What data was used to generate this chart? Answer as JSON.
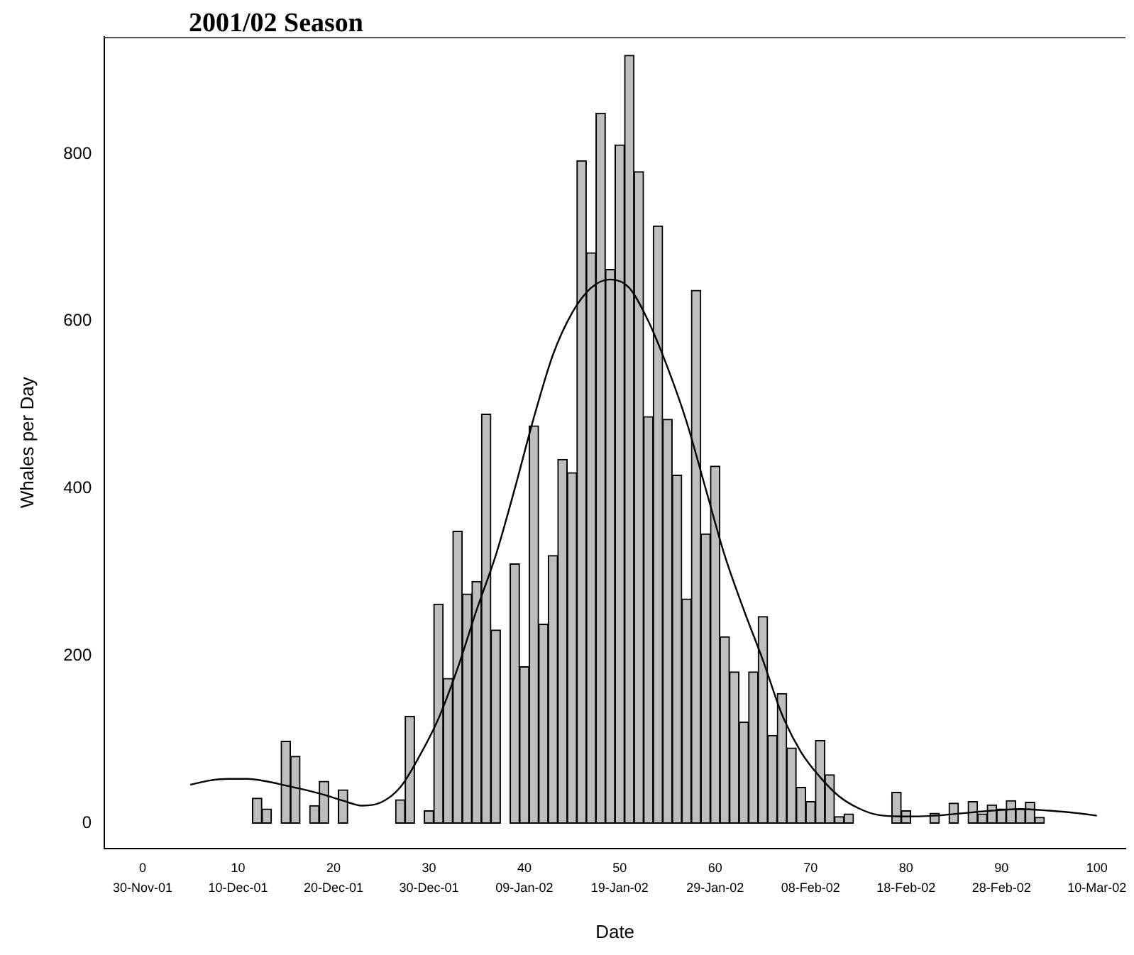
{
  "chart_data": {
    "type": "histogram",
    "title": "2001/02 Season",
    "xlabel": "Date",
    "ylabel": "Whales per Day",
    "bins": [
      11.5,
      12.5,
      13.5,
      14.5,
      15.5,
      16.5,
      17.5,
      18.5,
      19.5,
      20.5,
      21.5,
      22.5,
      23.5,
      24.5,
      25.5,
      26.5,
      27.5,
      28.5,
      29.5,
      30.5,
      31.5,
      32.5,
      33.5,
      34.5,
      35.5,
      36.5,
      37.5,
      38.5,
      39.5,
      40.5,
      41.5,
      42.5,
      43.5,
      44.5,
      45.5,
      46.5,
      47.5,
      48.5,
      49.5,
      50.5,
      51.5,
      52.5,
      53.5,
      54.5,
      55.5,
      56.5,
      57.5,
      58.5,
      59.5,
      60.5,
      61.5,
      62.5,
      63.5,
      64.5,
      65.5,
      66.5,
      67.5,
      68.5,
      69.5,
      70.5,
      71.5,
      72.5,
      73.5,
      74.5,
      75.5,
      76.5,
      77.5,
      78.5,
      79.5,
      80.5,
      81.5,
      82.5,
      83.5,
      84.5,
      85.5,
      86.5,
      87.5,
      88.5,
      89.5,
      90.5,
      91.5,
      92.5,
      93.5,
      94.5,
      95.5
    ],
    "values": [
      30,
      17,
      0,
      98,
      80,
      0,
      21,
      50,
      0,
      40,
      0,
      0,
      0,
      0,
      0,
      28,
      128,
      null,
      15,
      262,
      173,
      349,
      274,
      289,
      489,
      231,
      null,
      310,
      187,
      475,
      238,
      320,
      435,
      419,
      792,
      682,
      849,
      662,
      811,
      918,
      779,
      486,
      714,
      483,
      416,
      268,
      637,
      346,
      427,
      223,
      181,
      121,
      181,
      247,
      105,
      155,
      90,
      43,
      26,
      99,
      58,
      8,
      11,
      0,
      0,
      0,
      0,
      37,
      15,
      0,
      0,
      12,
      0,
      24,
      0,
      26,
      11,
      22,
      17,
      27,
      17,
      25,
      7,
      0
    ],
    "color": "#bebebe",
    "series": [
      {
        "type": "line",
        "color": "#000000",
        "x": [
          5,
          7,
          9,
          11,
          13,
          15,
          17,
          19,
          21,
          23,
          25,
          27,
          29,
          31,
          33,
          35,
          37,
          39,
          41,
          43,
          45,
          47,
          49,
          51,
          53,
          55,
          57,
          59,
          61,
          63,
          65,
          67,
          69,
          71,
          73,
          75,
          77,
          80,
          83,
          86,
          89,
          92,
          95,
          98,
          100
        ],
        "values": [
          46,
          51,
          53,
          53,
          50,
          45,
          40,
          34,
          27,
          21,
          25,
          43,
          80,
          125,
          185,
          255,
          320,
          400,
          485,
          560,
          610,
          640,
          650,
          640,
          600,
          545,
          480,
          400,
          320,
          255,
          195,
          130,
          85,
          55,
          32,
          18,
          10,
          8,
          9,
          12,
          15,
          17,
          15,
          12,
          9
        ]
      }
    ],
    "xlim": [
      -4,
      103
    ],
    "ylim": [
      -30,
      940
    ],
    "xticks": [
      0,
      10,
      20,
      30,
      40,
      50,
      60,
      70,
      80,
      90,
      100
    ],
    "x2lim": [
      "2001-11-26",
      "2002-03-13"
    ],
    "x2ticks": [
      {
        "value": "2001-11-30",
        "label": "30-Nov-01"
      },
      {
        "value": "2001-12-10",
        "label": "10-Dec-01"
      },
      {
        "value": "2001-12-20",
        "label": "20-Dec-01"
      },
      {
        "value": "2001-12-30",
        "label": "30-Dec-01"
      },
      {
        "value": "2002-01-09",
        "label": "09-Jan-02"
      },
      {
        "value": "2002-01-19",
        "label": "19-Jan-02"
      },
      {
        "value": "2002-01-29",
        "label": "29-Jan-02"
      },
      {
        "value": "2002-02-08",
        "label": "08-Feb-02"
      },
      {
        "value": "2002-02-18",
        "label": "18-Feb-02"
      },
      {
        "value": "2002-02-28",
        "label": "28-Feb-02"
      },
      {
        "value": "2002-03-10",
        "label": "10-Mar-02"
      }
    ],
    "yticks": [
      0,
      200,
      400,
      600,
      800
    ],
    "grid": false,
    "legend": false
  }
}
